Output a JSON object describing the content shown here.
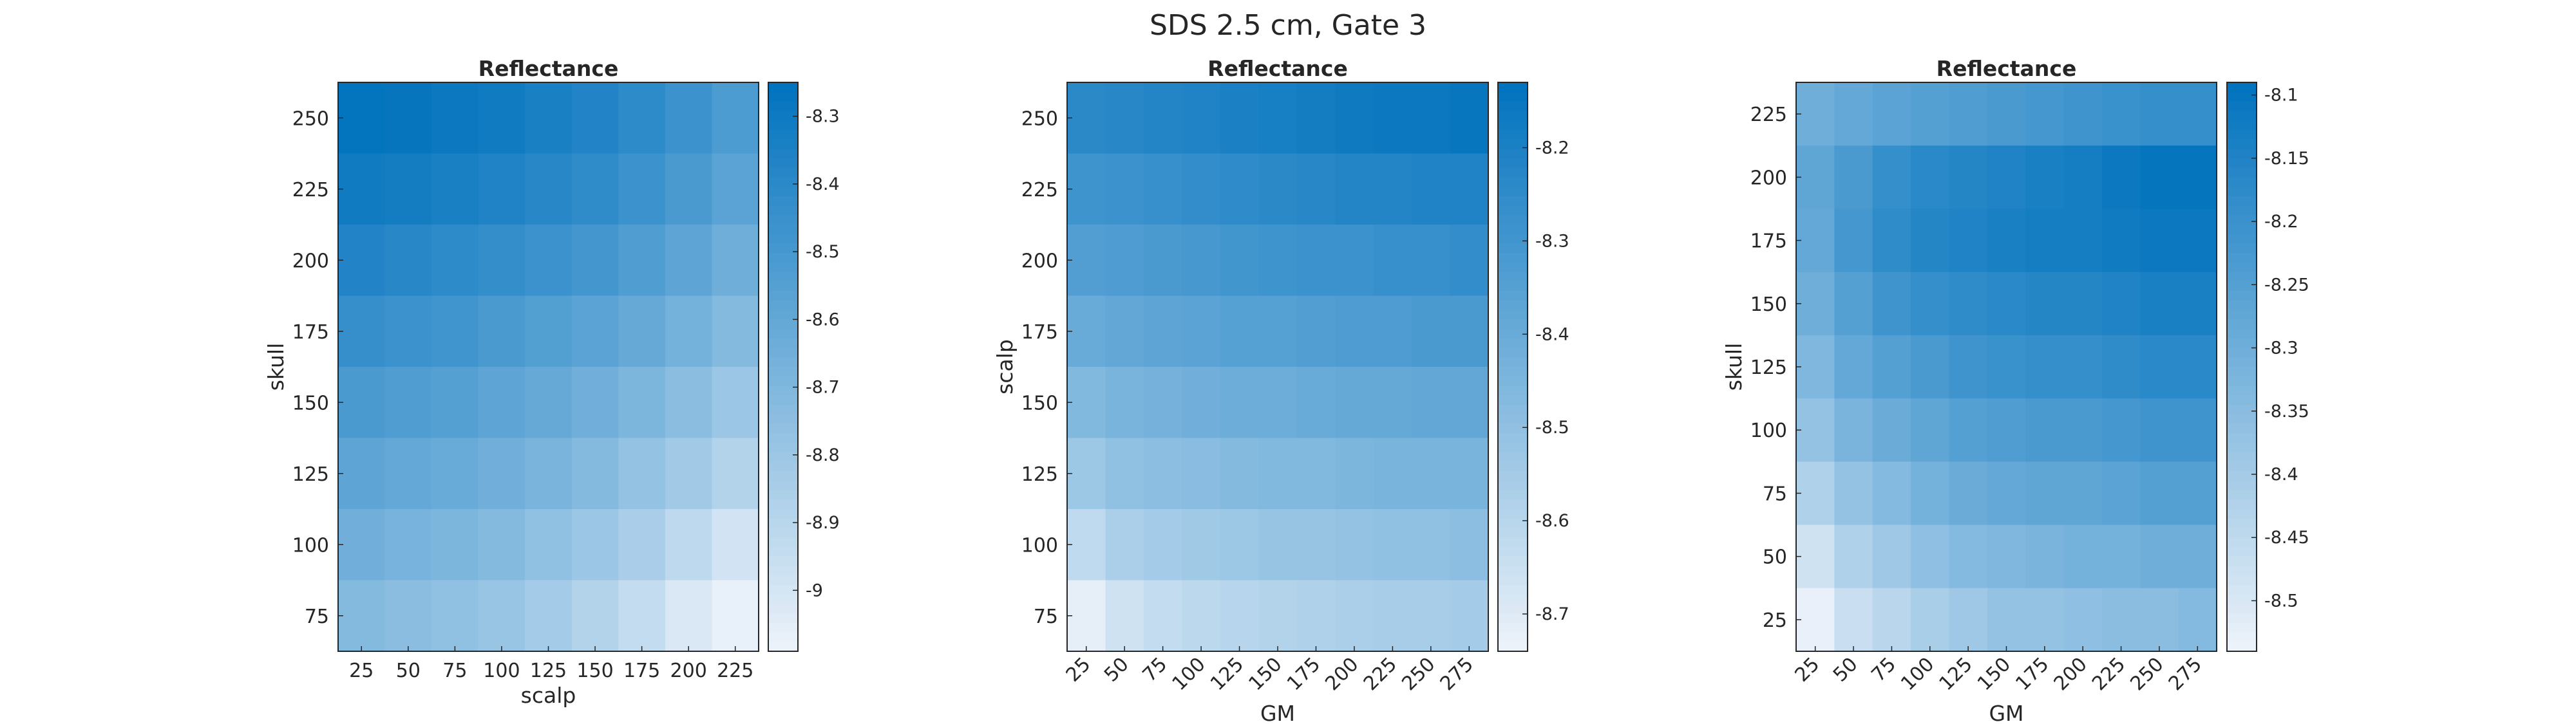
{
  "figure": {
    "title": "SDS 2.5 cm, Gate 3"
  },
  "colors": {
    "low": "#eef3fa",
    "high": "#0072bd",
    "axis": "#262626",
    "text": "#262626"
  },
  "chart_data": [
    {
      "type": "heatmap",
      "title": "Reflectance",
      "xlabel": "scalp",
      "ylabel": "skull",
      "x": [
        25,
        50,
        75,
        100,
        125,
        150,
        175,
        200,
        225
      ],
      "y": [
        75,
        100,
        125,
        150,
        175,
        200,
        225,
        250
      ],
      "xtick_rotation": 0,
      "clim": [
        -9.09,
        -8.25
      ],
      "colorbar_ticks": [
        -9,
        -8.9,
        -8.8,
        -8.7,
        -8.6,
        -8.5,
        -8.4,
        -8.3
      ],
      "colorbar_labels": [
        "-9",
        "-8.9",
        "-8.8",
        "-8.7",
        "-8.6",
        "-8.5",
        "-8.4",
        "-8.3"
      ],
      "z": [
        [
          -8.26,
          -8.27,
          -8.29,
          -8.31,
          -8.34,
          -8.37,
          -8.41,
          -8.46,
          -8.52
        ],
        [
          -8.31,
          -8.32,
          -8.34,
          -8.36,
          -8.39,
          -8.42,
          -8.46,
          -8.51,
          -8.57
        ],
        [
          -8.37,
          -8.39,
          -8.41,
          -8.43,
          -8.46,
          -8.49,
          -8.53,
          -8.58,
          -8.64
        ],
        [
          -8.44,
          -8.46,
          -8.48,
          -8.51,
          -8.54,
          -8.57,
          -8.61,
          -8.66,
          -8.72
        ],
        [
          -8.51,
          -8.53,
          -8.55,
          -8.58,
          -8.61,
          -8.65,
          -8.69,
          -8.74,
          -8.8
        ],
        [
          -8.58,
          -8.6,
          -8.62,
          -8.65,
          -8.68,
          -8.72,
          -8.77,
          -8.82,
          -8.88
        ],
        [
          -8.65,
          -8.67,
          -8.69,
          -8.72,
          -8.76,
          -8.8,
          -8.85,
          -8.92,
          -8.99
        ],
        [
          -8.72,
          -8.74,
          -8.76,
          -8.79,
          -8.83,
          -8.88,
          -8.94,
          -9.02,
          -9.07
        ]
      ]
    },
    {
      "type": "heatmap",
      "title": "Reflectance",
      "xlabel": "GM",
      "ylabel": "scalp",
      "x": [
        25,
        50,
        75,
        100,
        125,
        150,
        175,
        200,
        225,
        250,
        275
      ],
      "y": [
        75,
        100,
        125,
        150,
        175,
        200,
        225,
        250
      ],
      "xtick_rotation": -45,
      "clim": [
        -8.74,
        -8.13
      ],
      "colorbar_ticks": [
        -8.7,
        -8.6,
        -8.5,
        -8.4,
        -8.3,
        -8.2
      ],
      "colorbar_labels": [
        "-8.7",
        "-8.6",
        "-8.5",
        "-8.4",
        "-8.3",
        "-8.2"
      ],
      "z": [
        [
          -8.24,
          -8.23,
          -8.22,
          -8.21,
          -8.2,
          -8.19,
          -8.18,
          -8.17,
          -8.16,
          -8.16,
          -8.15
        ],
        [
          -8.29,
          -8.28,
          -8.27,
          -8.26,
          -8.25,
          -8.24,
          -8.23,
          -8.22,
          -8.22,
          -8.21,
          -8.21
        ],
        [
          -8.34,
          -8.33,
          -8.32,
          -8.31,
          -8.3,
          -8.29,
          -8.28,
          -8.28,
          -8.27,
          -8.27,
          -8.26
        ],
        [
          -8.4,
          -8.38,
          -8.37,
          -8.36,
          -8.35,
          -8.35,
          -8.34,
          -8.33,
          -8.33,
          -8.32,
          -8.32
        ],
        [
          -8.46,
          -8.44,
          -8.43,
          -8.42,
          -8.41,
          -8.41,
          -8.4,
          -8.39,
          -8.39,
          -8.38,
          -8.38
        ],
        [
          -8.53,
          -8.5,
          -8.49,
          -8.48,
          -8.47,
          -8.46,
          -8.46,
          -8.45,
          -8.44,
          -8.44,
          -8.44
        ],
        [
          -8.62,
          -8.57,
          -8.55,
          -8.54,
          -8.53,
          -8.52,
          -8.52,
          -8.51,
          -8.5,
          -8.5,
          -8.49
        ],
        [
          -8.72,
          -8.66,
          -8.63,
          -8.61,
          -8.6,
          -8.59,
          -8.58,
          -8.57,
          -8.56,
          -8.56,
          -8.55
        ]
      ]
    },
    {
      "type": "heatmap",
      "title": "Reflectance",
      "xlabel": "GM",
      "ylabel": "skull",
      "x": [
        25,
        50,
        75,
        100,
        125,
        150,
        175,
        200,
        225,
        250,
        275
      ],
      "y": [
        25,
        50,
        75,
        100,
        125,
        150,
        175,
        200,
        225
      ],
      "xtick_rotation": -45,
      "clim": [
        -8.54,
        -8.09
      ],
      "colorbar_ticks": [
        -8.5,
        -8.45,
        -8.4,
        -8.35,
        -8.3,
        -8.25,
        -8.2,
        -8.15,
        -8.1
      ],
      "colorbar_labels": [
        "-8.5",
        "-8.45",
        "-8.4",
        "-8.35",
        "-8.3",
        "-8.25",
        "-8.2",
        "-8.15",
        "-8.1"
      ],
      "z": [
        [
          -8.3,
          -8.28,
          -8.26,
          -8.25,
          -8.24,
          -8.23,
          -8.22,
          -8.21,
          -8.2,
          -8.19,
          -8.19
        ],
        [
          -8.27,
          -8.23,
          -8.19,
          -8.17,
          -8.16,
          -8.15,
          -8.14,
          -8.13,
          -8.11,
          -8.1,
          -8.1
        ],
        [
          -8.28,
          -8.22,
          -8.18,
          -8.16,
          -8.15,
          -8.14,
          -8.13,
          -8.13,
          -8.12,
          -8.11,
          -8.11
        ],
        [
          -8.3,
          -8.25,
          -8.21,
          -8.19,
          -8.18,
          -8.17,
          -8.16,
          -8.16,
          -8.15,
          -8.14,
          -8.14
        ],
        [
          -8.33,
          -8.28,
          -8.25,
          -8.23,
          -8.21,
          -8.2,
          -8.19,
          -8.19,
          -8.18,
          -8.17,
          -8.17
        ],
        [
          -8.37,
          -8.32,
          -8.29,
          -8.27,
          -8.25,
          -8.24,
          -8.23,
          -8.23,
          -8.22,
          -8.21,
          -8.21
        ],
        [
          -8.42,
          -8.37,
          -8.34,
          -8.31,
          -8.29,
          -8.28,
          -8.27,
          -8.27,
          -8.26,
          -8.25,
          -8.25
        ],
        [
          -8.48,
          -8.42,
          -8.39,
          -8.36,
          -8.34,
          -8.33,
          -8.32,
          -8.31,
          -8.31,
          -8.3,
          -8.3
        ],
        [
          -8.53,
          -8.47,
          -8.44,
          -8.41,
          -8.39,
          -8.37,
          -8.37,
          -8.36,
          -8.35,
          -8.35,
          -8.34
        ]
      ]
    }
  ]
}
